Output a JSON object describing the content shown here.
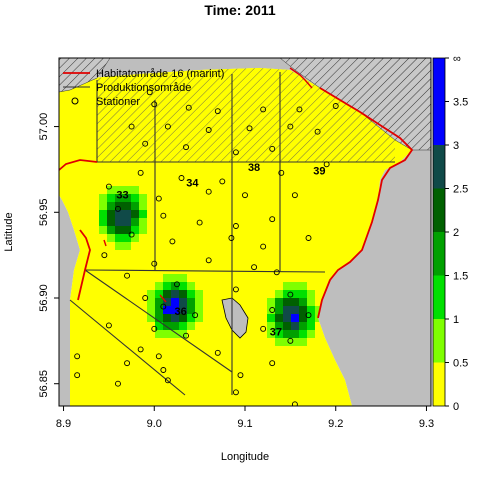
{
  "title": "Time: 2011",
  "x_axis_label": "Longitude",
  "y_axis_label": "Latitude",
  "x_ticks": [
    8.9,
    9.0,
    9.1,
    9.2,
    9.3
  ],
  "x_tick_labels": [
    "8.9",
    "9.0",
    "9.1",
    "9.2",
    "9.3"
  ],
  "y_ticks": [
    56.85,
    56.9,
    56.95,
    57.0
  ],
  "y_tick_labels": [
    "56.85",
    "56.90",
    "56.95",
    "57.00"
  ],
  "xlim": [
    8.895,
    9.305
  ],
  "ylim": [
    56.837,
    57.04
  ],
  "legend": {
    "items": [
      {
        "label": "Habitatområde 16 (marint)",
        "kind": "line",
        "color": "#e00000"
      },
      {
        "label": "Produktionsområde",
        "kind": "line",
        "color": "#333333"
      },
      {
        "label": "Stationer",
        "kind": "circle",
        "color": "#000000"
      }
    ]
  },
  "zone_labels": [
    {
      "label": "33",
      "lon": 8.965,
      "lat": 56.958
    },
    {
      "label": "34",
      "lon": 9.042,
      "lat": 56.965
    },
    {
      "label": "38",
      "lon": 9.11,
      "lat": 56.974
    },
    {
      "label": "39",
      "lon": 9.182,
      "lat": 56.972
    },
    {
      "label": "36",
      "lon": 9.029,
      "lat": 56.89
    },
    {
      "label": "37",
      "lon": 9.134,
      "lat": 56.878
    }
  ],
  "colorbar": {
    "labels": [
      "0",
      "0.5",
      "1",
      "1.5",
      "2",
      "2.5",
      "3",
      "3.5",
      "∞"
    ],
    "colors": [
      "#ffff00",
      "#7fff00",
      "#00e000",
      "#00a000",
      "#006000",
      "#104a48",
      "#0000ff",
      "#0000ff"
    ]
  },
  "colors": {
    "land": "#bebebe",
    "water": "#ffffff",
    "habitat_line": "#e00000",
    "production_line": "#333333"
  },
  "chart_data": {
    "type": "heatmap",
    "title": "Time: 2011",
    "xlabel": "Longitude",
    "ylabel": "Latitude",
    "xlim": [
      8.895,
      9.305
    ],
    "ylim": [
      56.837,
      57.04
    ],
    "hotspots": [
      {
        "name": "",
        "lon": 8.965,
        "lat": 56.948,
        "peak": 3.0
      },
      {
        "name": "",
        "lon": 9.022,
        "lat": 56.895,
        "peak": 3.5
      },
      {
        "name": "",
        "lon": 9.152,
        "lat": 56.89,
        "peak": 3.2
      }
    ],
    "stations": [
      [
        8.995,
        57.02
      ],
      [
        9.0,
        57.013
      ],
      [
        9.038,
        57.011
      ],
      [
        9.07,
        57.009
      ],
      [
        9.12,
        57.01
      ],
      [
        9.16,
        57.01
      ],
      [
        9.2,
        57.012
      ],
      [
        8.975,
        57.0
      ],
      [
        9.015,
        57.0
      ],
      [
        9.06,
        56.998
      ],
      [
        9.105,
        56.999
      ],
      [
        9.15,
        57.0
      ],
      [
        9.18,
        56.997
      ],
      [
        8.99,
        56.99
      ],
      [
        9.035,
        56.988
      ],
      [
        9.09,
        56.985
      ],
      [
        9.13,
        56.987
      ],
      [
        8.985,
        56.973
      ],
      [
        9.03,
        56.97
      ],
      [
        9.075,
        56.968
      ],
      [
        9.14,
        56.973
      ],
      [
        9.19,
        56.978
      ],
      [
        8.95,
        56.965
      ],
      [
        9.005,
        56.958
      ],
      [
        9.06,
        56.962
      ],
      [
        9.1,
        56.96
      ],
      [
        9.155,
        56.96
      ],
      [
        8.96,
        56.952
      ],
      [
        9.01,
        56.948
      ],
      [
        9.05,
        56.944
      ],
      [
        9.09,
        56.942
      ],
      [
        9.13,
        56.946
      ],
      [
        9.17,
        56.935
      ],
      [
        8.975,
        56.937
      ],
      [
        9.02,
        56.933
      ],
      [
        9.085,
        56.935
      ],
      [
        9.12,
        56.93
      ],
      [
        8.945,
        56.925
      ],
      [
        9.0,
        56.92
      ],
      [
        9.06,
        56.922
      ],
      [
        9.11,
        56.918
      ],
      [
        9.135,
        56.915
      ],
      [
        8.97,
        56.913
      ],
      [
        9.025,
        56.908
      ],
      [
        9.09,
        56.905
      ],
      [
        9.15,
        56.902
      ],
      [
        8.99,
        56.9
      ],
      [
        9.01,
        56.895
      ],
      [
        9.045,
        56.89
      ],
      [
        9.13,
        56.893
      ],
      [
        9.17,
        56.89
      ],
      [
        8.95,
        56.884
      ],
      [
        9.0,
        56.882
      ],
      [
        9.035,
        56.878
      ],
      [
        9.12,
        56.882
      ],
      [
        9.15,
        56.875
      ],
      [
        8.985,
        56.87
      ],
      [
        9.005,
        56.866
      ],
      [
        9.07,
        56.868
      ],
      [
        9.13,
        56.862
      ],
      [
        8.915,
        56.866
      ],
      [
        8.97,
        56.862
      ],
      [
        9.01,
        56.858
      ],
      [
        9.095,
        56.855
      ],
      [
        8.915,
        56.855
      ],
      [
        8.96,
        56.85
      ],
      [
        9.015,
        56.852
      ],
      [
        9.09,
        56.845
      ],
      [
        9.155,
        56.838
      ]
    ]
  }
}
